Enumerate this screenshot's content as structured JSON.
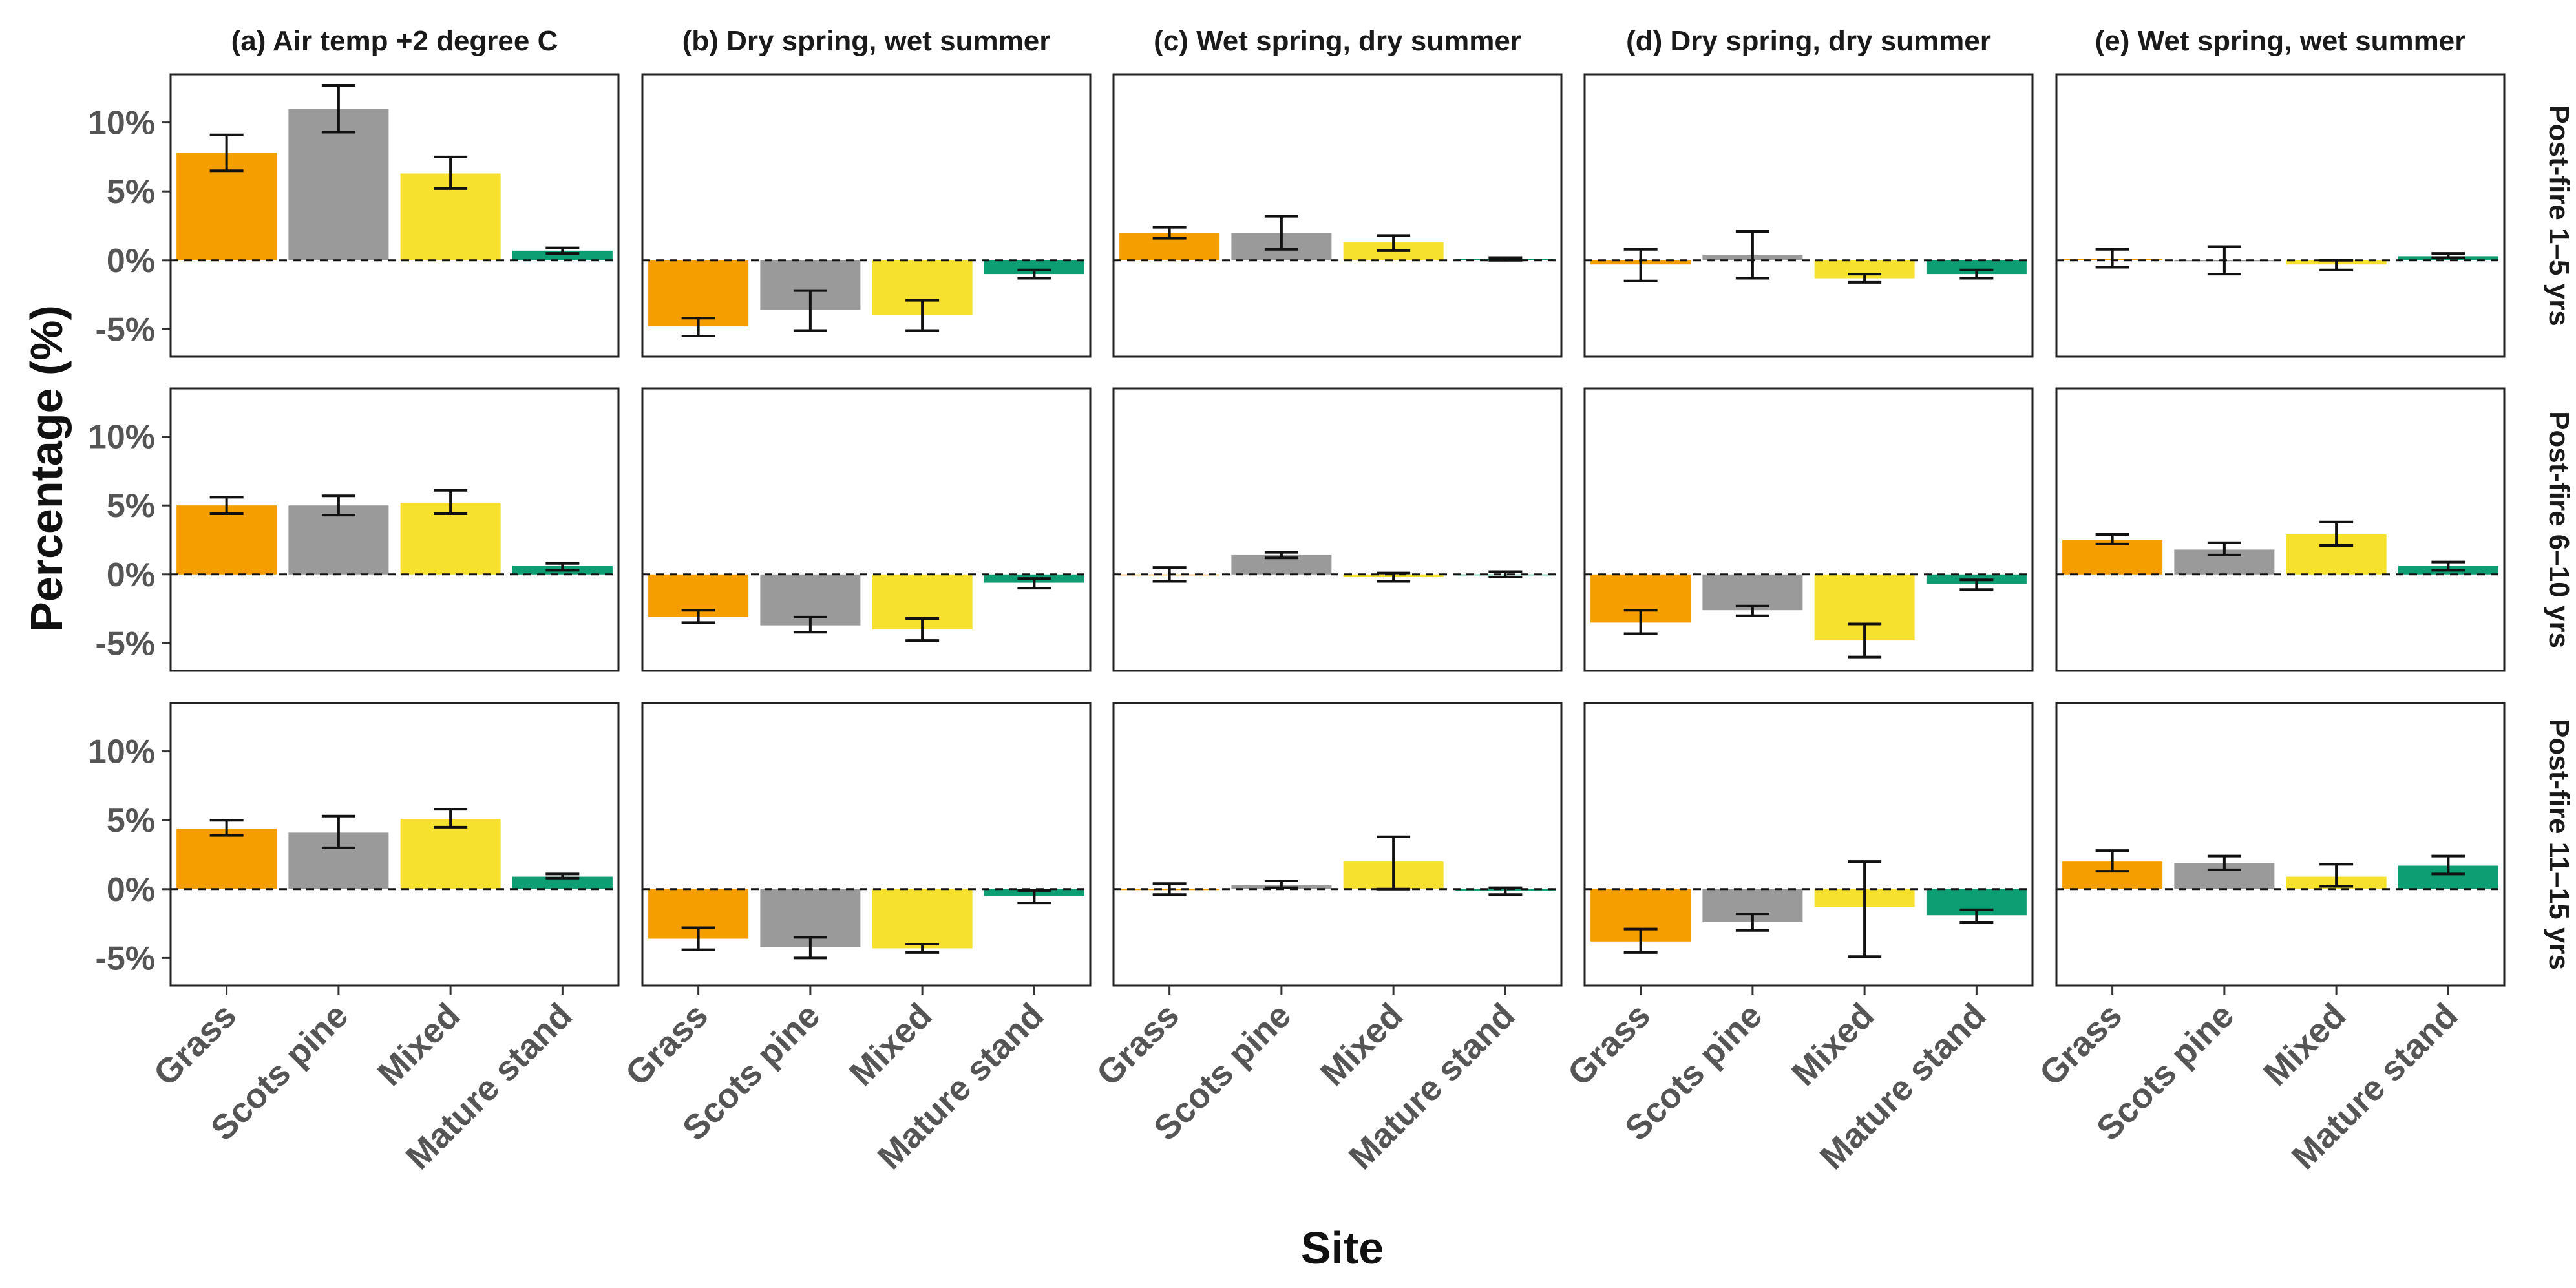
{
  "chart_data": {
    "type": "bar",
    "xlabel": "Site",
    "ylabel": "Percentage (%)",
    "categories": [
      "Grass",
      "Scots pine",
      "Mixed",
      "Mature stand"
    ],
    "colors": [
      "#F59E00",
      "#9A9A9A",
      "#F5E12E",
      "#0E9E74"
    ],
    "ylim": [
      -7,
      13.5
    ],
    "yticks": [
      -5,
      0,
      5,
      10
    ],
    "ytick_labels": [
      "-5%",
      "0%",
      "5%",
      "10%"
    ],
    "columns": [
      "(a) Air temp +2 degree C",
      "(b) Dry spring, wet summer",
      "(c) Wet spring, dry summer",
      "(d) Dry spring, dry summer",
      "(e) Wet spring, wet summer"
    ],
    "rows": [
      "Post-fire 1–5 yrs",
      "Post-fire 6–10 yrs",
      "Post-fire 11–15 yrs"
    ],
    "panels": [
      [
        {
          "values": [
            7.8,
            11.0,
            6.3,
            0.7
          ],
          "err_low": [
            6.5,
            9.3,
            5.2,
            0.5
          ],
          "err_high": [
            9.1,
            12.7,
            7.5,
            0.9
          ]
        },
        {
          "values": [
            -4.8,
            -3.6,
            -4.0,
            -1.0
          ],
          "err_low": [
            -5.5,
            -5.1,
            -5.1,
            -1.3
          ],
          "err_high": [
            -4.2,
            -2.2,
            -2.9,
            -0.7
          ]
        },
        {
          "values": [
            2.0,
            2.0,
            1.3,
            0.1
          ],
          "err_low": [
            1.6,
            0.8,
            0.7,
            0.0
          ],
          "err_high": [
            2.4,
            3.2,
            1.8,
            0.2
          ]
        },
        {
          "values": [
            -0.3,
            0.4,
            -1.3,
            -1.0
          ],
          "err_low": [
            -1.5,
            -1.3,
            -1.6,
            -1.3
          ],
          "err_high": [
            0.8,
            2.1,
            -1.0,
            -0.7
          ]
        },
        {
          "values": [
            0.1,
            0.0,
            -0.3,
            0.3
          ],
          "err_low": [
            -0.5,
            -1.0,
            -0.7,
            0.2
          ],
          "err_high": [
            0.8,
            1.0,
            0.0,
            0.5
          ]
        }
      ],
      [
        {
          "values": [
            5.0,
            5.0,
            5.2,
            0.6
          ],
          "err_low": [
            4.4,
            4.3,
            4.4,
            0.3
          ],
          "err_high": [
            5.6,
            5.7,
            6.1,
            0.8
          ]
        },
        {
          "values": [
            -3.1,
            -3.7,
            -4.0,
            -0.6
          ],
          "err_low": [
            -3.5,
            -4.2,
            -4.8,
            -1.0
          ],
          "err_high": [
            -2.6,
            -3.1,
            -3.2,
            -0.3
          ]
        },
        {
          "values": [
            0.0,
            1.4,
            -0.2,
            0.0
          ],
          "err_low": [
            -0.5,
            1.2,
            -0.5,
            -0.2
          ],
          "err_high": [
            0.5,
            1.6,
            0.1,
            0.2
          ]
        },
        {
          "values": [
            -3.5,
            -2.6,
            -4.8,
            -0.7
          ],
          "err_low": [
            -4.3,
            -3.0,
            -6.0,
            -1.1
          ],
          "err_high": [
            -2.6,
            -2.3,
            -3.6,
            -0.4
          ]
        },
        {
          "values": [
            2.5,
            1.8,
            2.9,
            0.6
          ],
          "err_low": [
            2.2,
            1.4,
            2.1,
            0.3
          ],
          "err_high": [
            2.9,
            2.3,
            3.8,
            0.9
          ]
        }
      ],
      [
        {
          "values": [
            4.4,
            4.1,
            5.1,
            0.9
          ],
          "err_low": [
            3.9,
            3.0,
            4.5,
            0.8
          ],
          "err_high": [
            5.0,
            5.3,
            5.8,
            1.1
          ]
        },
        {
          "values": [
            -3.6,
            -4.2,
            -4.3,
            -0.5
          ],
          "err_low": [
            -4.4,
            -5.0,
            -4.6,
            -1.0
          ],
          "err_high": [
            -2.8,
            -3.5,
            -4.0,
            -0.1
          ]
        },
        {
          "values": [
            0.0,
            0.3,
            2.0,
            -0.1
          ],
          "err_low": [
            -0.4,
            0.1,
            0.0,
            -0.4
          ],
          "err_high": [
            0.4,
            0.6,
            3.8,
            0.1
          ]
        },
        {
          "values": [
            -3.8,
            -2.4,
            -1.3,
            -1.9
          ],
          "err_low": [
            -4.6,
            -3.0,
            -4.9,
            -2.4
          ],
          "err_high": [
            -2.9,
            -1.8,
            2.0,
            -1.5
          ]
        },
        {
          "values": [
            2.0,
            1.9,
            0.9,
            1.7
          ],
          "err_low": [
            1.3,
            1.4,
            0.2,
            1.1
          ],
          "err_high": [
            2.8,
            2.4,
            1.8,
            2.4
          ]
        }
      ]
    ]
  }
}
